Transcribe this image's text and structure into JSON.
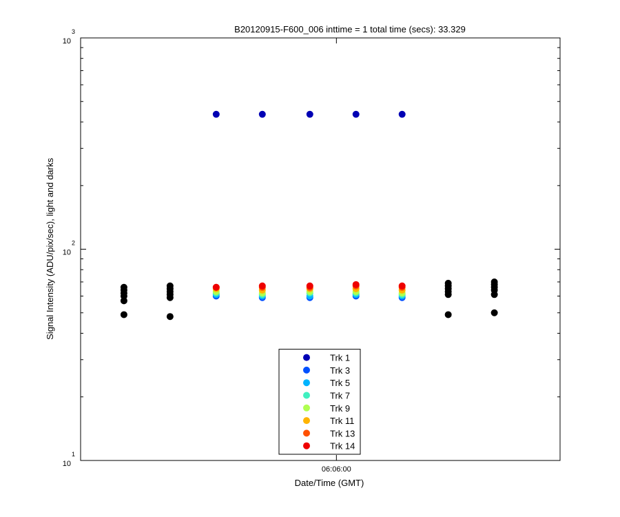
{
  "chart_data": {
    "type": "scatter",
    "title": "B20120915-F600_006 inttime = 1 total time (secs): 33.329",
    "xlabel": "Date/Time (GMT)",
    "ylabel": "Signal Intensity (ADU/pix/sec), light and darks",
    "xlim": [
      21941.7,
      21976.0
    ],
    "xticks": [
      {
        "value": 21960,
        "label": "06:06:00"
      }
    ],
    "ylim": [
      10,
      1000
    ],
    "log_y": true,
    "yticks": [
      {
        "value": 10,
        "label": "10",
        "exponent": "1"
      },
      {
        "value": 100,
        "label": "10",
        "exponent": "2"
      },
      {
        "value": 1000,
        "label": "10",
        "exponent": "3"
      }
    ],
    "yminorticks": [
      20,
      30,
      40,
      50,
      60,
      70,
      80,
      90,
      200,
      300,
      400,
      500,
      600,
      700,
      800,
      900
    ],
    "legend": "south",
    "series": [
      {
        "name": "Trk 1",
        "color": "#0000b4",
        "x": [
          21951.4,
          21954.7,
          21958.1,
          21961.4,
          21964.7
        ],
        "values": [
          435,
          435,
          435,
          435,
          435
        ]
      },
      {
        "name": "Trk 3",
        "color": "#0050ff",
        "x": [
          21951.4,
          21954.7,
          21958.1,
          21961.4,
          21964.7
        ],
        "values": [
          60,
          59,
          59,
          60,
          59
        ]
      },
      {
        "name": "Trk 5",
        "color": "#00b4ff",
        "x": [
          21951.4,
          21954.7,
          21958.1,
          21961.4,
          21964.7
        ],
        "values": [
          61,
          60,
          60,
          61,
          60
        ]
      },
      {
        "name": "Trk 7",
        "color": "#40f0c0",
        "x": [
          21951.4,
          21954.7,
          21958.1,
          21961.4,
          21964.7
        ],
        "values": [
          62,
          61,
          62,
          62,
          61
        ]
      },
      {
        "name": "Trk 9",
        "color": "#b0ff50",
        "x": [
          21951.4,
          21954.7,
          21958.1,
          21961.4,
          21964.7
        ],
        "values": [
          63,
          62,
          63,
          63,
          62
        ]
      },
      {
        "name": "Trk 11",
        "color": "#ffb400",
        "x": [
          21951.4,
          21954.7,
          21958.1,
          21961.4,
          21964.7
        ],
        "values": [
          65,
          64,
          65,
          65,
          64
        ]
      },
      {
        "name": "Trk 13",
        "color": "#ff5000",
        "x": [
          21951.4,
          21954.7,
          21958.1,
          21961.4,
          21964.7
        ],
        "values": [
          66,
          66,
          66,
          67,
          66
        ]
      },
      {
        "name": "Trk 14",
        "color": "#ee0000",
        "x": [
          21951.4,
          21954.7,
          21958.1,
          21961.4,
          21964.7
        ],
        "values": [
          66,
          67,
          67,
          68,
          67
        ]
      },
      {
        "color": "#000000",
        "x": [
          21944.8,
          21944.8,
          21944.8,
          21944.8,
          21944.8,
          21944.8,
          21948.1,
          21948.1,
          21948.1,
          21948.1,
          21948.1,
          21948.1,
          21968.0,
          21968.0,
          21968.0,
          21968.0,
          21968.0,
          21968.0,
          21971.3,
          21971.3,
          21971.3,
          21971.3,
          21971.3,
          21971.3
        ],
        "values": [
          66,
          64,
          62,
          60,
          57,
          49,
          67,
          65,
          63,
          61,
          59,
          48,
          69,
          67,
          65,
          63,
          61,
          49,
          70,
          68,
          66,
          64,
          61,
          50
        ]
      }
    ]
  }
}
